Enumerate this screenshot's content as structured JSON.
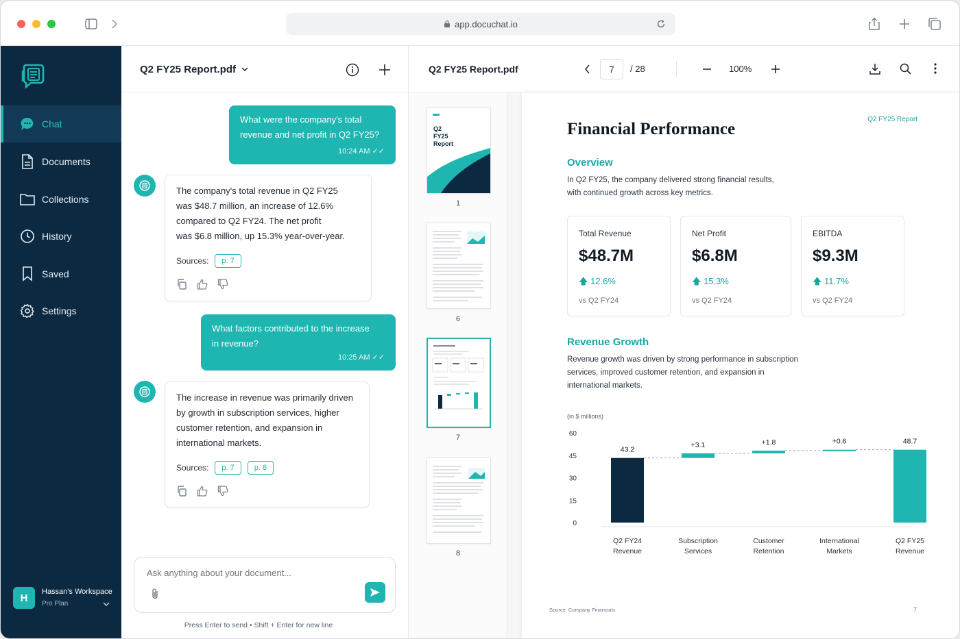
{
  "browser": {
    "url": "app.docuchat.io"
  },
  "sidebar": {
    "items": [
      {
        "label": "Chat",
        "icon": "chat-bubble-icon"
      },
      {
        "label": "Documents",
        "icon": "document-icon"
      },
      {
        "label": "Collections",
        "icon": "folder-icon"
      },
      {
        "label": "History",
        "icon": "clock-icon"
      },
      {
        "label": "Saved",
        "icon": "bookmark-icon"
      },
      {
        "label": "Settings",
        "icon": "gear-icon"
      }
    ],
    "workspace": {
      "initial": "H",
      "name": "Hassan's Workspace",
      "plan": "Pro Plan"
    }
  },
  "chat": {
    "doc_title": "Q2 FY25 Report.pdf",
    "messages": [
      {
        "role": "user",
        "lines": [
          "What were the company's total",
          "revenue and net profit in Q2 FY25?"
        ],
        "time": "10:24 AM"
      },
      {
        "role": "assistant",
        "lines": [
          "The company's total revenue in Q2 FY25",
          "was $48.7 million, an increase of 12.6%",
          "compared to Q2 FY24. The net profit",
          "was $6.8 million, up 15.3% year-over-year."
        ],
        "sources_label": "Sources:",
        "sources": [
          "p. 7"
        ]
      },
      {
        "role": "user",
        "lines": [
          "What factors contributed to the increase",
          "in revenue?"
        ],
        "time": "10:25 AM"
      },
      {
        "role": "assistant",
        "lines": [
          "The increase in revenue was primarily driven",
          "by growth in subscription services, higher",
          "customer retention, and expansion in",
          "international markets."
        ],
        "sources_label": "Sources:",
        "sources": [
          "p. 7",
          "p. 8"
        ]
      }
    ],
    "input_placeholder": "Ask anything about your document...",
    "hint": "Press Enter to send • Shift + Enter for new line"
  },
  "thumbnails": [
    {
      "page": "1",
      "cover_title": "Q2\nFY25\nReport"
    },
    {
      "page": "6"
    },
    {
      "page": "7"
    },
    {
      "page": "8"
    }
  ],
  "viewer": {
    "title": "Q2 FY25 Report.pdf",
    "current_page": "7",
    "total_pages": "/ 28",
    "zoom": "100%"
  },
  "document": {
    "tag": "Q2 FY25 Report",
    "heading": "Financial Performance",
    "overview_title": "Overview",
    "overview_lines": [
      "In Q2 FY25, the company delivered strong financial results,",
      "with continued growth across key metrics."
    ],
    "kpis": [
      {
        "label": "Total Revenue",
        "value": "$48.7M",
        "change": "12.6%",
        "compare": "vs Q2 FY24"
      },
      {
        "label": "Net Profit",
        "value": "$6.8M",
        "change": "15.3%",
        "compare": "vs Q2 FY24"
      },
      {
        "label": "EBITDA",
        "value": "$9.3M",
        "change": "11.7%",
        "compare": "vs Q2 FY24"
      }
    ],
    "growth_title": "Revenue Growth",
    "growth_lines": [
      "Revenue growth was driven by strong performance in subscription",
      "services, improved customer retention, and expansion in",
      "international markets."
    ],
    "source_note": "Source: Company Financials",
    "page_number": "7"
  },
  "chart_data": {
    "type": "bar",
    "subtype": "waterfall",
    "unit_label": "(in $ millions)",
    "categories": [
      [
        "Q2 FY24",
        "Revenue"
      ],
      [
        "Subscription",
        "Services"
      ],
      [
        "Customer",
        "Retention"
      ],
      [
        "International",
        "Markets"
      ],
      [
        "Q2 FY25",
        "Revenue"
      ]
    ],
    "values": [
      43.2,
      3.1,
      1.8,
      0.6,
      48.7
    ],
    "data_labels": [
      "43.2",
      "+3.1",
      "+1.8",
      "+0.6",
      "48.7"
    ],
    "kinds": [
      "total",
      "delta",
      "delta",
      "delta",
      "total"
    ],
    "ylim": [
      0,
      60
    ],
    "yticks": [
      "0",
      "15",
      "30",
      "45",
      "60"
    ],
    "colors": {
      "start_total": "#0b2a42",
      "delta": "#1fb5b0",
      "end_total": "#1fb5b0"
    }
  },
  "colors": {
    "accent": "#1fb5b0",
    "sidebar": "#0b2a42"
  }
}
